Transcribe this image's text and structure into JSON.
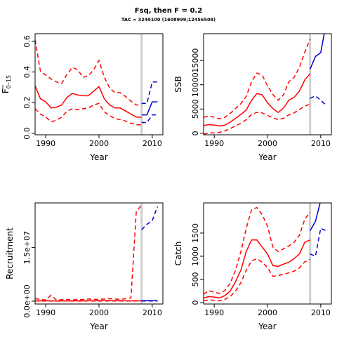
{
  "figure": {
    "title": "Fsq, then F = 0.2",
    "subtitle": "TAC = 3249100 (1608999;12456508)"
  },
  "chart_data": [
    {
      "type": "line",
      "id": "fbar",
      "ylabel_main": "F",
      "ylabel_sub": "0–15",
      "xlabel": "Year",
      "xlim": [
        1988,
        2012
      ],
      "ylim": [
        -0.01,
        0.65
      ],
      "xticks": [
        1990,
        2000,
        2010
      ],
      "xtick_labels": [
        "1990",
        "2000",
        "2010"
      ],
      "yticks": [
        0,
        0.2,
        0.4,
        0.6
      ],
      "ytick_labels": [
        "0.0",
        "0.2",
        "0.4",
        "0.6"
      ],
      "vline": 2008,
      "series": [
        {
          "role": "historical-median",
          "color": "#ff0000",
          "dash": false,
          "x": [
            1988,
            1989,
            1990,
            1991,
            1992,
            1993,
            1994,
            1995,
            1996,
            1997,
            1998,
            1999,
            2000,
            2001,
            2002,
            2003,
            2004,
            2005,
            2006,
            2007,
            2008
          ],
          "y": [
            0.31,
            0.225,
            0.205,
            0.165,
            0.17,
            0.185,
            0.235,
            0.26,
            0.25,
            0.245,
            0.245,
            0.275,
            0.305,
            0.225,
            0.185,
            0.165,
            0.165,
            0.145,
            0.125,
            0.105,
            0.105
          ]
        },
        {
          "role": "historical-upper",
          "color": "#ff0000",
          "dash": true,
          "x": [
            1988,
            1989,
            1990,
            1991,
            1992,
            1993,
            1994,
            1995,
            1996,
            1997,
            1998,
            1999,
            2000,
            2001,
            2002,
            2003,
            2004,
            2005,
            2006,
            2007,
            2008
          ],
          "y": [
            0.61,
            0.405,
            0.38,
            0.355,
            0.335,
            0.325,
            0.385,
            0.43,
            0.415,
            0.365,
            0.375,
            0.415,
            0.475,
            0.365,
            0.295,
            0.265,
            0.265,
            0.24,
            0.21,
            0.185,
            0.185
          ]
        },
        {
          "role": "historical-lower",
          "color": "#ff0000",
          "dash": true,
          "x": [
            1988,
            1989,
            1990,
            1991,
            1992,
            1993,
            1994,
            1995,
            1996,
            1997,
            1998,
            1999,
            2000,
            2001,
            2002,
            2003,
            2004,
            2005,
            2006,
            2007,
            2008
          ],
          "y": [
            0.16,
            0.125,
            0.105,
            0.075,
            0.085,
            0.105,
            0.145,
            0.16,
            0.155,
            0.16,
            0.165,
            0.185,
            0.195,
            0.14,
            0.115,
            0.095,
            0.09,
            0.08,
            0.065,
            0.055,
            0.055
          ]
        },
        {
          "role": "projection-median",
          "color": "#0000cc",
          "dash": false,
          "x": [
            2008,
            2009,
            2010,
            2011
          ],
          "y": [
            0.12,
            0.12,
            0.205,
            0.205
          ]
        },
        {
          "role": "projection-upper",
          "color": "#0000cc",
          "dash": true,
          "x": [
            2008,
            2009,
            2010,
            2011
          ],
          "y": [
            0.195,
            0.195,
            0.335,
            0.335
          ]
        },
        {
          "role": "projection-lower",
          "color": "#0000cc",
          "dash": true,
          "x": [
            2008,
            2009,
            2010,
            2011
          ],
          "y": [
            0.07,
            0.07,
            0.12,
            0.12
          ]
        }
      ]
    },
    {
      "type": "line",
      "id": "ssb",
      "ylabel": "SSB",
      "xlabel": "Year",
      "xlim": [
        1988,
        2012
      ],
      "ylim": [
        -300,
        20500
      ],
      "xticks": [
        1990,
        2000,
        2010
      ],
      "xtick_labels": [
        "1990",
        "2000",
        "2010"
      ],
      "yticks": [
        0,
        5000,
        10000,
        15000
      ],
      "ytick_labels": [
        "0",
        "5000",
        "10000",
        "15000"
      ],
      "vline": 2008,
      "series": [
        {
          "role": "historical-median",
          "color": "#ff0000",
          "dash": false,
          "x": [
            1988,
            1989,
            1990,
            1991,
            1992,
            1993,
            1994,
            1995,
            1996,
            1997,
            1998,
            1999,
            2000,
            2001,
            2002,
            2003,
            2004,
            2005,
            2006,
            2007,
            2008
          ],
          "y": [
            1600,
            1800,
            1700,
            1500,
            1700,
            2300,
            3100,
            3900,
            4800,
            6800,
            8200,
            7900,
            6300,
            5100,
            4300,
            5200,
            6800,
            7400,
            8700,
            11000,
            12300
          ]
        },
        {
          "role": "historical-upper",
          "color": "#ff0000",
          "dash": true,
          "x": [
            1988,
            1989,
            1990,
            1991,
            1992,
            1993,
            1994,
            1995,
            1996,
            1997,
            1998,
            1999,
            2000,
            2001,
            2002,
            2003,
            2004,
            2005,
            2006,
            2007,
            2008
          ],
          "y": [
            3300,
            3600,
            3300,
            3000,
            3300,
            4100,
            5100,
            6100,
            7600,
            10600,
            12400,
            12000,
            9800,
            8000,
            6800,
            7900,
            10600,
            11500,
            13600,
            16700,
            19400
          ]
        },
        {
          "role": "historical-lower",
          "color": "#ff0000",
          "dash": true,
          "x": [
            1988,
            1989,
            1990,
            1991,
            1992,
            1993,
            1994,
            1995,
            1996,
            1997,
            1998,
            1999,
            2000,
            2001,
            2002,
            2003,
            2004,
            2005,
            2006,
            2007,
            2008
          ],
          "y": [
            -200,
            100,
            100,
            200,
            500,
            1000,
            1500,
            2100,
            2800,
            3900,
            4300,
            4200,
            3700,
            3200,
            2800,
            3100,
            3800,
            4200,
            4900,
            5600,
            6000
          ]
        },
        {
          "role": "projection-median",
          "color": "#0000cc",
          "dash": false,
          "x": [
            2008,
            2009,
            2010,
            2011
          ],
          "y": [
            13200,
            15800,
            16600,
            22500
          ]
        },
        {
          "role": "projection-lower",
          "color": "#0000cc",
          "dash": true,
          "x": [
            2008,
            2009,
            2010,
            2011
          ],
          "y": [
            7200,
            7700,
            6800,
            5800
          ]
        }
      ]
    },
    {
      "type": "line",
      "id": "recruitment",
      "ylabel": "Recruitment",
      "xlabel": "Year",
      "xlim": [
        1988,
        2012
      ],
      "ylim": [
        -800000,
        27500000
      ],
      "xticks": [
        1990,
        2000,
        2010
      ],
      "xtick_labels": [
        "1990",
        "2000",
        "2010"
      ],
      "yticks": [
        0,
        15000000
      ],
      "ytick_labels": [
        "0.0e+00",
        "1.5e+07"
      ],
      "vline": 2008,
      "series": [
        {
          "role": "historical-median",
          "color": "#ff0000",
          "dash": false,
          "x": [
            1988,
            1989,
            1990,
            1991,
            1992,
            1993,
            1994,
            1995,
            1996,
            1997,
            1998,
            1999,
            2000,
            2001,
            2002,
            2003,
            2004,
            2005,
            2006,
            2007,
            2008
          ],
          "y": [
            80000,
            60000,
            100000,
            80000,
            60000,
            90000,
            70000,
            80000,
            100000,
            90000,
            110000,
            100000,
            130000,
            120000,
            130000,
            120000,
            110000,
            100000,
            90000,
            100000,
            100000
          ]
        },
        {
          "role": "historical-upper",
          "color": "#ff0000",
          "dash": true,
          "x": [
            1988,
            1989,
            1990,
            1991,
            1992,
            1993,
            1994,
            1995,
            1996,
            1997,
            1998,
            1999,
            2000,
            2001,
            2002,
            2003,
            2004,
            2005,
            2006,
            2007,
            2008
          ],
          "y": [
            700000,
            500000,
            300000,
            1700000,
            300000,
            400000,
            500000,
            300000,
            500000,
            400000,
            600000,
            500000,
            500000,
            600000,
            700000,
            600000,
            500000,
            700000,
            900000,
            25000000,
            27000000
          ]
        },
        {
          "role": "historical-lower",
          "color": "#ff0000",
          "dash": true,
          "x": [
            1988,
            1989,
            1990,
            1991,
            1992,
            1993,
            1994,
            1995,
            1996,
            1997,
            1998,
            1999,
            2000,
            2001,
            2002,
            2003,
            2004,
            2005,
            2006,
            2007,
            2008
          ],
          "y": [
            20000,
            20000,
            30000,
            20000,
            20000,
            30000,
            20000,
            20000,
            30000,
            30000,
            30000,
            30000,
            40000,
            40000,
            30000,
            30000,
            30000,
            30000,
            30000,
            30000,
            30000
          ]
        },
        {
          "role": "projection-median",
          "color": "#0000cc",
          "dash": false,
          "x": [
            2008,
            2009,
            2010,
            2011
          ],
          "y": [
            150000,
            150000,
            150000,
            150000
          ]
        },
        {
          "role": "projection-upper",
          "color": "#0000cc",
          "dash": true,
          "x": [
            2008,
            2009,
            2010,
            2011
          ],
          "y": [
            20000000,
            21500000,
            22500000,
            26500000
          ]
        },
        {
          "role": "projection-lower",
          "color": "#0000cc",
          "dash": true,
          "x": [
            2008,
            2009,
            2010,
            2011
          ],
          "y": [
            30000,
            30000,
            30000,
            30000
          ]
        }
      ]
    },
    {
      "type": "line",
      "id": "catch",
      "ylabel": "Catch",
      "xlabel": "Year",
      "xlim": [
        1988,
        2012
      ],
      "ylim": [
        -30,
        2150
      ],
      "xticks": [
        1990,
        2000,
        2010
      ],
      "xtick_labels": [
        "1990",
        "2000",
        "2010"
      ],
      "yticks": [
        0,
        500,
        1000,
        1500
      ],
      "ytick_labels": [
        "0",
        "500",
        "1000",
        "1500"
      ],
      "vline": 2008,
      "series": [
        {
          "role": "historical-median",
          "color": "#ff0000",
          "dash": false,
          "x": [
            1988,
            1989,
            1990,
            1991,
            1992,
            1993,
            1994,
            1995,
            1996,
            1997,
            1998,
            1999,
            2000,
            2001,
            2002,
            2003,
            2004,
            2005,
            2006,
            2007,
            2008
          ],
          "y": [
            100,
            130,
            120,
            100,
            150,
            250,
            450,
            700,
            1100,
            1350,
            1350,
            1200,
            1050,
            800,
            780,
            830,
            870,
            950,
            1050,
            1300,
            1350
          ]
        },
        {
          "role": "historical-upper",
          "color": "#ff0000",
          "dash": true,
          "x": [
            1988,
            1989,
            1990,
            1991,
            1992,
            1993,
            1994,
            1995,
            1996,
            1997,
            1998,
            1999,
            2000,
            2001,
            2002,
            2003,
            2004,
            2005,
            2006,
            2007,
            2008
          ],
          "y": [
            180,
            260,
            220,
            200,
            260,
            420,
            700,
            1100,
            1600,
            2000,
            2050,
            1900,
            1650,
            1200,
            1100,
            1160,
            1220,
            1300,
            1450,
            1800,
            1950
          ]
        },
        {
          "role": "historical-lower",
          "color": "#ff0000",
          "dash": true,
          "x": [
            1988,
            1989,
            1990,
            1991,
            1992,
            1993,
            1994,
            1995,
            1996,
            1997,
            1998,
            1999,
            2000,
            2001,
            2002,
            2003,
            2004,
            2005,
            2006,
            2007,
            2008
          ],
          "y": [
            40,
            60,
            50,
            40,
            70,
            130,
            250,
            430,
            700,
            900,
            950,
            870,
            760,
            570,
            580,
            610,
            640,
            680,
            750,
            880,
            930
          ]
        },
        {
          "role": "projection-median",
          "color": "#0000cc",
          "dash": false,
          "x": [
            2008,
            2009,
            2010
          ],
          "y": [
            1550,
            1750,
            2200
          ]
        },
        {
          "role": "projection-lower",
          "color": "#0000cc",
          "dash": true,
          "x": [
            2008,
            2009,
            2010,
            2011
          ],
          "y": [
            1050,
            1000,
            1600,
            1550
          ]
        }
      ]
    }
  ]
}
